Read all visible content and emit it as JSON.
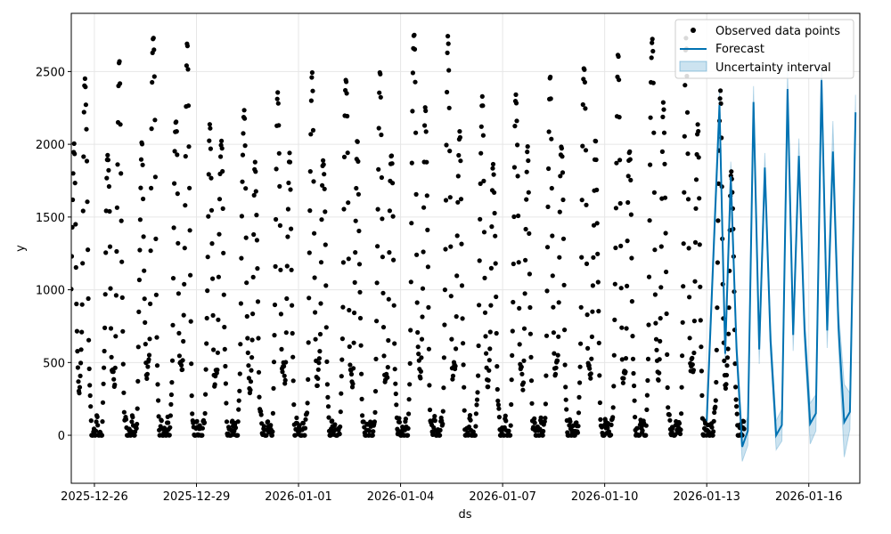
{
  "chart_data": {
    "type": "line",
    "title": "",
    "xlabel": "ds",
    "ylabel": "y",
    "x_range": [
      "2025-12-25",
      "2026-01-17"
    ],
    "ylim": [
      -330,
      2900
    ],
    "x_ticks": [
      "2025-12-26",
      "2025-12-29",
      "2026-01-01",
      "2026-01-04",
      "2026-01-07",
      "2026-01-10",
      "2026-01-13",
      "2026-01-16"
    ],
    "y_ticks": [
      0,
      500,
      1000,
      1500,
      2000,
      2500
    ],
    "grid": true,
    "legend_position": "top-right",
    "legend": [
      {
        "label": "Observed data points",
        "kind": "marker",
        "color": "#000000"
      },
      {
        "label": "Forecast",
        "kind": "line",
        "color": "#0072B2"
      },
      {
        "label": "Uncertainty interval",
        "kind": "band",
        "color": "#0072B2"
      }
    ],
    "series": [
      {
        "name": "Observed data points",
        "kind": "scatter",
        "color": "#000000",
        "x_start": "2025-12-25",
        "x_end": "2026-01-14",
        "daily_peaks": [
          1950,
          2500,
          2000,
          2510,
          1980,
          2770,
          2180,
          2680,
          2090,
          2080,
          2280,
          1820,
          2350,
          1880,
          2420,
          1960,
          2500,
          2000,
          2490,
          1950,
          2810,
          2200,
          2670,
          2130,
          2320,
          1860,
          2390,
          1910,
          2420,
          2030,
          2550,
          2020,
          2590,
          2010,
          2800,
          2210,
          2680,
          2120,
          2310,
          1860
        ],
        "daily_night_min": [
          0,
          0,
          0,
          0,
          0,
          0,
          0,
          0,
          0,
          0,
          0,
          0,
          0,
          0,
          0,
          0,
          0,
          0,
          0,
          0
        ],
        "daily_midday_trough": [
          570,
          600,
          620,
          700,
          640,
          560,
          600,
          580,
          620,
          590,
          620,
          640,
          650,
          600,
          650,
          660,
          640,
          660,
          650,
          600
        ]
      },
      {
        "name": "Forecast",
        "kind": "line",
        "color": "#0072B2",
        "x": [
          "2026-01-13 00:00",
          "2026-01-13 09:00",
          "2026-01-13 13:00",
          "2026-01-13 17:00",
          "2026-01-13 21:00",
          "2026-01-14 01:00",
          "2026-01-14 05:00",
          "2026-01-14 09:00",
          "2026-01-14 13:00",
          "2026-01-14 17:00",
          "2026-01-14 21:00",
          "2026-01-15 01:00",
          "2026-01-15 05:00",
          "2026-01-15 09:00",
          "2026-01-15 13:00",
          "2026-01-15 17:00",
          "2026-01-15 21:00",
          "2026-01-16 01:00",
          "2026-01-16 05:00",
          "2026-01-16 09:00",
          "2026-01-16 13:00",
          "2026-01-16 17:00",
          "2026-01-16 21:00",
          "2026-01-17 01:00",
          "2026-01-17 05:00",
          "2026-01-17 09:00"
        ],
        "y": [
          100,
          2270,
          560,
          1780,
          600,
          -80,
          30,
          2290,
          590,
          1840,
          650,
          0,
          70,
          2380,
          690,
          1920,
          720,
          80,
          150,
          2440,
          720,
          1950,
          740,
          90,
          160,
          2220
        ]
      },
      {
        "name": "Uncertainty interval",
        "kind": "band",
        "color": "#0072B2",
        "x": [
          "2026-01-13 00:00",
          "2026-01-13 09:00",
          "2026-01-13 13:00",
          "2026-01-13 17:00",
          "2026-01-13 21:00",
          "2026-01-14 01:00",
          "2026-01-14 05:00",
          "2026-01-14 09:00",
          "2026-01-14 13:00",
          "2026-01-14 17:00",
          "2026-01-14 21:00",
          "2026-01-15 01:00",
          "2026-01-15 05:00",
          "2026-01-15 09:00",
          "2026-01-15 13:00",
          "2026-01-15 17:00",
          "2026-01-15 21:00",
          "2026-01-16 01:00",
          "2026-01-16 05:00",
          "2026-01-16 09:00",
          "2026-01-16 13:00",
          "2026-01-16 17:00",
          "2026-01-16 21:00",
          "2026-01-17 01:00",
          "2026-01-17 05:00",
          "2026-01-17 09:00"
        ],
        "lower": [
          20,
          2170,
          480,
          1690,
          520,
          -180,
          -70,
          2180,
          490,
          1740,
          550,
          -100,
          -40,
          2260,
          580,
          1810,
          610,
          -60,
          30,
          2310,
          600,
          1830,
          610,
          -150,
          40,
          2090
        ],
        "upper": [
          190,
          2370,
          650,
          1880,
          690,
          20,
          130,
          2400,
          690,
          1940,
          750,
          100,
          180,
          2500,
          800,
          2040,
          830,
          220,
          280,
          2580,
          850,
          2160,
          860,
          350,
          290,
          2340
        ]
      }
    ]
  }
}
